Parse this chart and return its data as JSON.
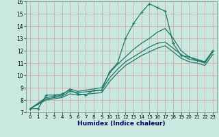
{
  "xlabel": "Humidex (Indice chaleur)",
  "bg_color": "#c8e8e0",
  "grid_color": "#d4a0a0",
  "line_color": "#207868",
  "xlim": [
    -0.5,
    23.5
  ],
  "ylim": [
    7,
    16
  ],
  "xticks": [
    0,
    1,
    2,
    3,
    4,
    5,
    6,
    7,
    8,
    9,
    10,
    11,
    12,
    13,
    14,
    15,
    16,
    17,
    18,
    19,
    20,
    21,
    22,
    23
  ],
  "yticks": [
    7,
    8,
    9,
    10,
    11,
    12,
    13,
    14,
    15,
    16
  ],
  "lines": [
    {
      "x": [
        0,
        1,
        2,
        3,
        4,
        5,
        6,
        7,
        8,
        9,
        10,
        11,
        12,
        13,
        14,
        15,
        16,
        17,
        18,
        19,
        20,
        21,
        22,
        23
      ],
      "y": [
        7.3,
        7.3,
        8.4,
        8.4,
        8.5,
        8.8,
        8.5,
        8.4,
        8.8,
        8.8,
        10.3,
        11.0,
        13.0,
        14.2,
        15.1,
        15.8,
        15.5,
        15.2,
        12.6,
        11.6,
        11.5,
        11.2,
        11.1,
        12.0
      ],
      "marker": true
    },
    {
      "x": [
        0,
        2,
        4,
        5,
        6,
        9,
        10,
        11,
        12,
        13,
        14,
        15,
        16,
        17,
        18,
        19,
        20,
        21,
        22,
        23
      ],
      "y": [
        7.3,
        8.2,
        8.4,
        8.9,
        8.7,
        9.0,
        10.2,
        10.9,
        11.5,
        12.1,
        12.6,
        13.0,
        13.5,
        13.8,
        13.0,
        12.0,
        11.5,
        11.3,
        11.1,
        12.0
      ],
      "marker": false
    },
    {
      "x": [
        0,
        2,
        4,
        5,
        6,
        9,
        10,
        11,
        12,
        13,
        14,
        15,
        16,
        17,
        18,
        19,
        20,
        21,
        22,
        23
      ],
      "y": [
        7.3,
        8.1,
        8.3,
        8.7,
        8.6,
        8.8,
        9.8,
        10.5,
        11.1,
        11.5,
        11.9,
        12.3,
        12.6,
        12.7,
        12.2,
        11.7,
        11.3,
        11.2,
        11.0,
        11.9
      ],
      "marker": false
    },
    {
      "x": [
        0,
        2,
        4,
        5,
        6,
        9,
        10,
        11,
        12,
        13,
        14,
        15,
        16,
        17,
        18,
        19,
        20,
        21,
        22,
        23
      ],
      "y": [
        7.3,
        8.0,
        8.2,
        8.5,
        8.4,
        8.6,
        9.5,
        10.2,
        10.8,
        11.2,
        11.6,
        11.9,
        12.2,
        12.4,
        11.9,
        11.4,
        11.1,
        11.0,
        10.8,
        11.7
      ],
      "marker": false
    }
  ]
}
